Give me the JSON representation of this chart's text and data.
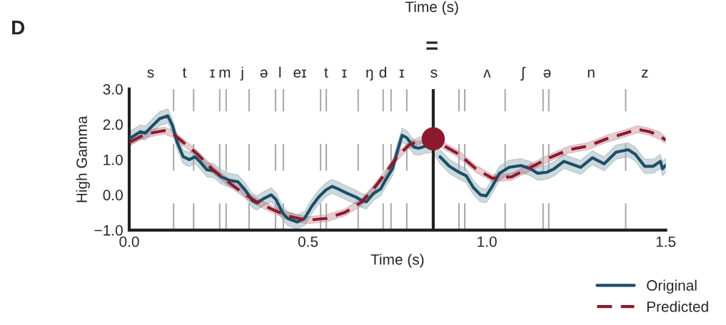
{
  "chart_data": {
    "type": "line",
    "xlabel": "Time (s)",
    "ylabel": "High Gamma",
    "xlim": [
      0,
      1.5
    ],
    "xticks": [
      {
        "value": 0,
        "label": "0.0"
      },
      {
        "value": 0.5,
        "label": "0.5"
      },
      {
        "value": 1.0,
        "label": "1.0"
      },
      {
        "value": 1.5,
        "label": "1.5"
      }
    ],
    "ylim": [
      -1,
      3
    ],
    "yticks": [
      {
        "value": -1,
        "label": "−1.0"
      },
      {
        "value": 0,
        "label": "0.0"
      },
      {
        "value": 1,
        "label": "1.0"
      },
      {
        "value": 2,
        "label": "2.0"
      },
      {
        "value": 3,
        "label": "3.0"
      }
    ],
    "annotations": [
      "D",
      "Time (s)",
      "=",
      "s",
      "t",
      "ɪ",
      "m",
      "j",
      "ə",
      "l",
      "eɪ",
      "t",
      "ɪ",
      "ŋ",
      "d",
      "ɪ",
      "s",
      "ʌ",
      "ʃ",
      "ə",
      "n",
      "z"
    ],
    "grid": false,
    "legend": "bottom right",
    "ref_lines": [
      {
        "axis": "x",
        "value": 0.124,
        "color": "#aaaaaa",
        "line_style": "dashed"
      },
      {
        "axis": "x",
        "value": 0.18,
        "color": "#aaaaaa",
        "line_style": "dashed"
      },
      {
        "axis": "x",
        "value": 0.253,
        "color": "#aaaaaa",
        "line_style": "dashed"
      },
      {
        "axis": "x",
        "value": 0.271,
        "color": "#aaaaaa",
        "line_style": "dashed"
      },
      {
        "axis": "x",
        "value": 0.335,
        "color": "#aaaaaa",
        "line_style": "dashed"
      },
      {
        "axis": "x",
        "value": 0.409,
        "color": "#aaaaaa",
        "line_style": "dashed"
      },
      {
        "axis": "x",
        "value": 0.431,
        "color": "#aaaaaa",
        "line_style": "dashed"
      },
      {
        "axis": "x",
        "value": 0.535,
        "color": "#aaaaaa",
        "line_style": "dashed"
      },
      {
        "axis": "x",
        "value": 0.551,
        "color": "#aaaaaa",
        "line_style": "dashed"
      },
      {
        "axis": "x",
        "value": 0.64,
        "color": "#aaaaaa",
        "line_style": "dashed"
      },
      {
        "axis": "x",
        "value": 0.71,
        "color": "#aaaaaa",
        "line_style": "dashed"
      },
      {
        "axis": "x",
        "value": 0.732,
        "color": "#aaaaaa",
        "line_style": "dashed"
      },
      {
        "axis": "x",
        "value": 0.776,
        "color": "#aaaaaa",
        "line_style": "dashed"
      },
      {
        "axis": "x",
        "value": 0.922,
        "color": "#aaaaaa",
        "line_style": "dashed"
      },
      {
        "axis": "x",
        "value": 0.938,
        "color": "#aaaaaa",
        "line_style": "dashed"
      },
      {
        "axis": "x",
        "value": 1.051,
        "color": "#aaaaaa",
        "line_style": "dashed"
      },
      {
        "axis": "x",
        "value": 1.157,
        "color": "#aaaaaa",
        "line_style": "dashed"
      },
      {
        "axis": "x",
        "value": 1.173,
        "color": "#aaaaaa",
        "line_style": "dashed"
      },
      {
        "axis": "x",
        "value": 1.388,
        "color": "#aaaaaa",
        "line_style": "dashed"
      },
      {
        "axis": "x",
        "value": 0.85,
        "color": "#222222",
        "line_style": "solid"
      }
    ],
    "series": [
      {
        "name": "Original",
        "color": "#1b4f66",
        "line_style": "solid",
        "x": [
          0.0,
          0.031,
          0.045,
          0.065,
          0.085,
          0.108,
          0.121,
          0.134,
          0.151,
          0.168,
          0.184,
          0.197,
          0.217,
          0.237,
          0.257,
          0.281,
          0.304,
          0.324,
          0.344,
          0.357,
          0.377,
          0.397,
          0.41,
          0.43,
          0.443,
          0.47,
          0.49,
          0.51,
          0.53,
          0.55,
          0.567,
          0.583,
          0.61,
          0.633,
          0.65,
          0.663,
          0.683,
          0.703,
          0.716,
          0.736,
          0.749,
          0.763,
          0.776,
          0.796,
          0.809,
          0.829,
          0.849,
          0.869,
          0.895,
          0.922,
          0.942,
          0.962,
          0.982,
          0.998,
          1.015,
          1.035,
          1.062,
          1.095,
          1.122,
          1.142,
          1.168,
          1.188,
          1.215,
          1.242,
          1.262,
          1.295,
          1.328,
          1.361,
          1.395,
          1.415,
          1.441,
          1.465,
          1.485,
          1.491,
          1.5
        ],
        "values": [
          1.59,
          1.79,
          1.75,
          1.96,
          2.16,
          2.24,
          1.96,
          1.49,
          1.08,
          1.0,
          1.08,
          0.95,
          0.71,
          0.68,
          0.51,
          0.41,
          0.37,
          0.14,
          -0.16,
          -0.23,
          -0.1,
          0.0,
          -0.13,
          -0.53,
          -0.67,
          -0.77,
          -0.67,
          -0.33,
          -0.06,
          0.14,
          0.24,
          0.17,
          0.04,
          -0.06,
          -0.16,
          -0.2,
          0.04,
          0.17,
          0.41,
          0.74,
          1.22,
          1.69,
          1.62,
          1.35,
          1.32,
          1.38,
          null,
          1.08,
          0.81,
          0.64,
          0.54,
          0.21,
          0.0,
          -0.03,
          0.24,
          0.61,
          0.78,
          0.83,
          0.74,
          0.61,
          0.64,
          0.74,
          0.95,
          0.85,
          0.78,
          1.05,
          0.88,
          1.21,
          1.28,
          1.15,
          0.81,
          0.81,
          0.95,
          0.74,
          0.84
        ],
        "lower": [
          1.39,
          1.59,
          1.55,
          1.76,
          1.96,
          2.04,
          1.76,
          1.29,
          0.88,
          0.8,
          0.88,
          0.75,
          0.51,
          0.48,
          0.31,
          0.21,
          0.17,
          -0.06,
          -0.36,
          -0.43,
          -0.3,
          -0.2,
          -0.33,
          -0.73,
          -0.87,
          -0.97,
          -0.87,
          -0.53,
          -0.26,
          -0.06,
          0.04,
          -0.03,
          -0.16,
          -0.26,
          -0.36,
          -0.4,
          -0.16,
          -0.03,
          0.21,
          0.54,
          1.02,
          1.49,
          1.42,
          1.15,
          1.12,
          1.18,
          1.2,
          0.88,
          0.61,
          0.44,
          0.34,
          0.01,
          -0.2,
          -0.23,
          0.04,
          0.41,
          0.58,
          0.63,
          0.54,
          0.41,
          0.44,
          0.54,
          0.75,
          0.65,
          0.58,
          0.85,
          0.68,
          1.01,
          1.08,
          0.95,
          0.61,
          0.61,
          0.75,
          0.54,
          0.64
        ],
        "upper": [
          1.79,
          1.99,
          1.95,
          2.16,
          2.36,
          2.44,
          2.16,
          1.69,
          1.28,
          1.2,
          1.28,
          1.15,
          0.91,
          0.88,
          0.71,
          0.61,
          0.57,
          0.34,
          0.04,
          -0.03,
          0.1,
          0.2,
          0.07,
          -0.33,
          -0.47,
          -0.57,
          -0.47,
          -0.13,
          0.14,
          0.34,
          0.44,
          0.37,
          0.24,
          0.14,
          0.04,
          0.0,
          0.24,
          0.37,
          0.61,
          0.94,
          1.42,
          1.89,
          1.82,
          1.55,
          1.52,
          1.58,
          1.6,
          1.28,
          1.01,
          0.84,
          0.74,
          0.41,
          0.2,
          0.17,
          0.44,
          0.81,
          0.98,
          1.03,
          0.94,
          0.81,
          0.84,
          0.94,
          1.15,
          1.05,
          0.98,
          1.25,
          1.08,
          1.41,
          1.48,
          1.35,
          1.01,
          1.01,
          1.15,
          0.94,
          1.04
        ]
      },
      {
        "name": "Predicted",
        "color": "#8b1a2e",
        "line_style": "dashed",
        "x": [
          0.0,
          0.045,
          0.098,
          0.124,
          0.151,
          0.191,
          0.231,
          0.271,
          0.311,
          0.35,
          0.397,
          0.443,
          0.497,
          0.55,
          0.603,
          0.65,
          0.683,
          0.716,
          0.749,
          0.783,
          0.816,
          0.849,
          0.882,
          0.922,
          0.969,
          1.015,
          1.069,
          1.122,
          1.175,
          1.229,
          1.282,
          1.335,
          1.388,
          1.421,
          1.454,
          1.481,
          1.5
        ],
        "values": [
          1.49,
          1.72,
          1.82,
          1.72,
          1.49,
          1.15,
          0.74,
          0.41,
          0.1,
          -0.16,
          -0.4,
          -0.6,
          -0.72,
          -0.67,
          -0.5,
          -0.2,
          0.17,
          0.61,
          1.08,
          1.42,
          1.55,
          1.59,
          1.38,
          1.15,
          0.74,
          0.47,
          0.51,
          0.78,
          1.05,
          1.28,
          1.38,
          1.59,
          1.75,
          1.86,
          1.79,
          1.69,
          1.55
        ],
        "lower": [
          1.39,
          1.62,
          1.72,
          1.62,
          1.39,
          1.05,
          0.64,
          0.31,
          0.0,
          -0.26,
          -0.5,
          -0.7,
          -0.82,
          -0.77,
          -0.6,
          -0.3,
          0.07,
          0.51,
          0.98,
          1.32,
          1.45,
          1.49,
          1.28,
          1.05,
          0.64,
          0.37,
          0.41,
          0.68,
          0.95,
          1.18,
          1.28,
          1.49,
          1.65,
          1.76,
          1.69,
          1.59,
          1.45
        ],
        "upper": [
          1.59,
          1.82,
          1.92,
          1.82,
          1.59,
          1.25,
          0.84,
          0.51,
          0.2,
          -0.06,
          -0.3,
          -0.5,
          -0.62,
          -0.57,
          -0.4,
          -0.1,
          0.27,
          0.71,
          1.18,
          1.52,
          1.65,
          1.69,
          1.48,
          1.25,
          0.84,
          0.57,
          0.61,
          0.88,
          1.15,
          1.38,
          1.48,
          1.69,
          1.85,
          1.96,
          1.89,
          1.79,
          1.65
        ]
      },
      {
        "type": "scatter",
        "color": "#8b1a2e",
        "marker": "circle",
        "x": [
          0.85
        ],
        "values": [
          1.59
        ]
      }
    ]
  }
}
